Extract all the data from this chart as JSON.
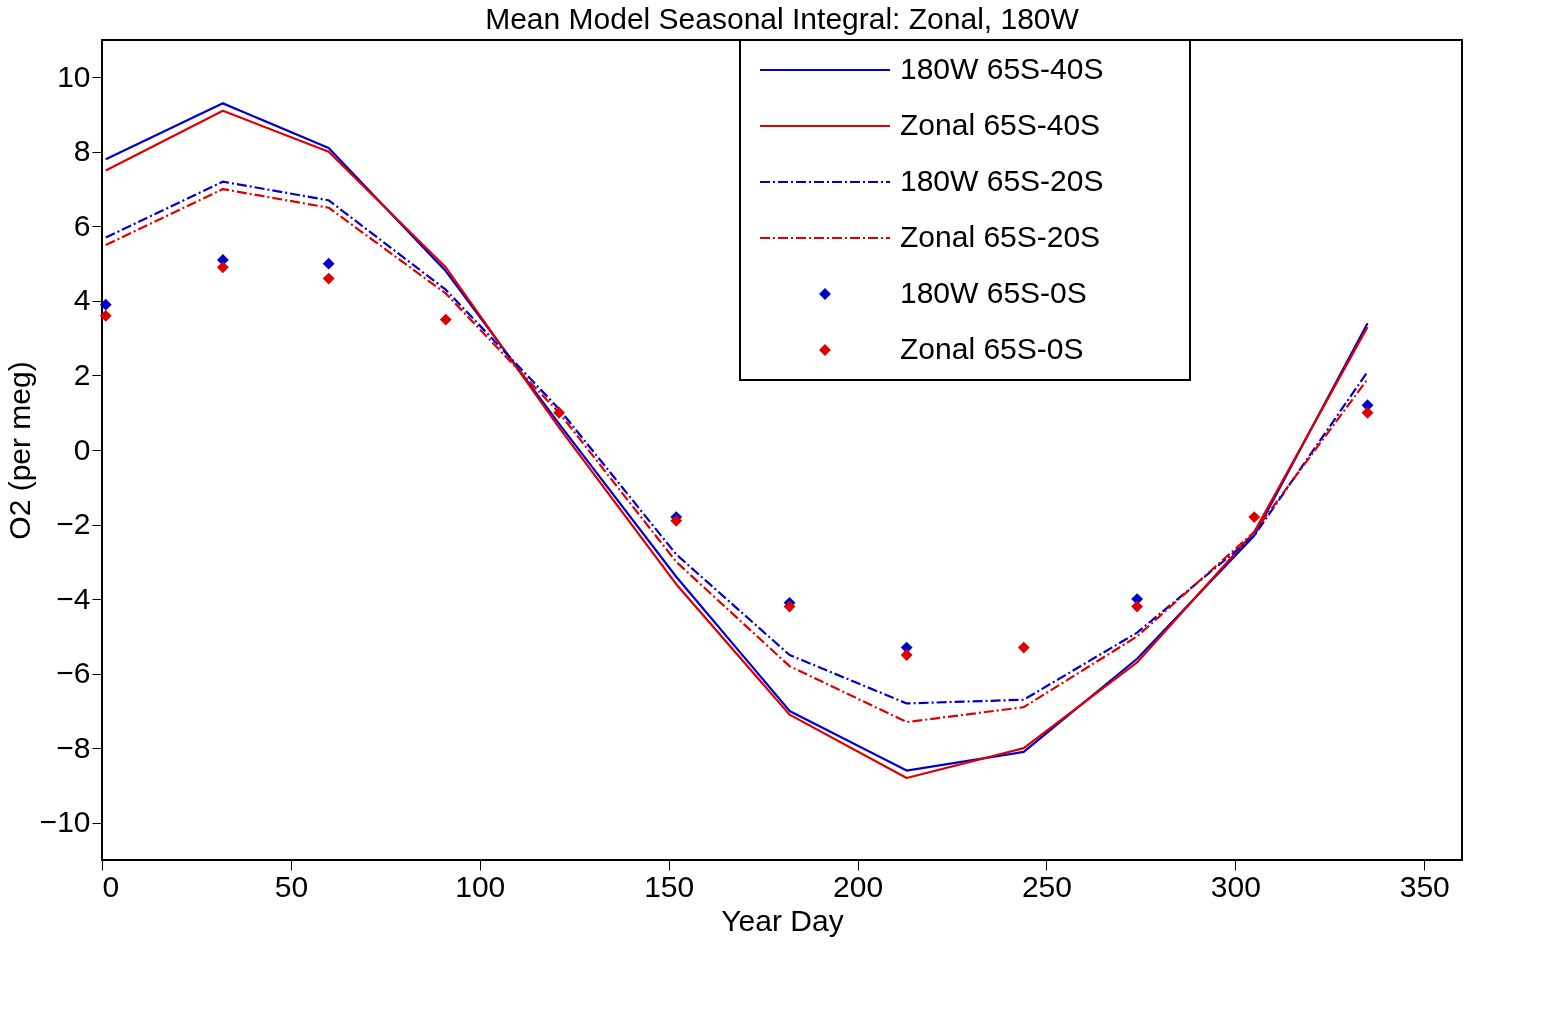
{
  "chart_data": {
    "type": "line",
    "title": "Mean Model Seasonal Integral: Zonal, 180W",
    "xlabel": "Year Day",
    "ylabel": "O2 (per meg)",
    "x": [
      1,
      32,
      60,
      91,
      121,
      152,
      182,
      213,
      244,
      274,
      305,
      335
    ],
    "series": [
      {
        "name": "180W 65S-40S",
        "color": "#0000cc",
        "line_style": "solid",
        "values": [
          7.8,
          9.3,
          8.1,
          4.8,
          0.7,
          -3.4,
          -7.0,
          -8.6,
          -8.1,
          -5.6,
          -2.3,
          3.4
        ]
      },
      {
        "name": "Zonal 65S-40S",
        "color": "#dd0000",
        "line_style": "solid",
        "values": [
          7.5,
          9.1,
          8.0,
          4.9,
          0.6,
          -3.6,
          -7.1,
          -8.8,
          -8.0,
          -5.7,
          -2.2,
          3.3
        ]
      },
      {
        "name": "180W 65S-20S",
        "color": "#0000cc",
        "line_style": "dashdot",
        "values": [
          5.7,
          7.2,
          6.7,
          4.3,
          1.1,
          -2.8,
          -5.5,
          -6.8,
          -6.7,
          -4.9,
          -2.3,
          2.1
        ]
      },
      {
        "name": "Zonal 65S-20S",
        "color": "#dd0000",
        "line_style": "dashdot",
        "values": [
          5.5,
          7.0,
          6.5,
          4.2,
          1.0,
          -3.0,
          -5.8,
          -7.3,
          -6.9,
          -5.0,
          -2.2,
          1.9
        ]
      },
      {
        "name": "180W 65S-0S",
        "color": "#0000cc",
        "type": "scatter",
        "marker": "diamond",
        "values": [
          3.9,
          5.1,
          5.0,
          null,
          null,
          -1.8,
          -4.1,
          -5.3,
          null,
          -4.0,
          null,
          1.2
        ]
      },
      {
        "name": "Zonal 65S-0S",
        "color": "#dd0000",
        "type": "scatter",
        "marker": "diamond",
        "values": [
          3.6,
          4.9,
          4.6,
          3.5,
          1.0,
          -1.9,
          -4.2,
          -5.5,
          -5.3,
          -4.2,
          -1.8,
          1.0
        ]
      }
    ],
    "xlim": [
      0,
      360
    ],
    "ylim": [
      -11,
      11
    ],
    "xticks": [
      0,
      50,
      100,
      150,
      200,
      250,
      300,
      350
    ],
    "yticks": [
      -10,
      -8,
      -6,
      -4,
      -2,
      0,
      2,
      4,
      6,
      8,
      10
    ],
    "grid": false,
    "legend": "top right"
  }
}
